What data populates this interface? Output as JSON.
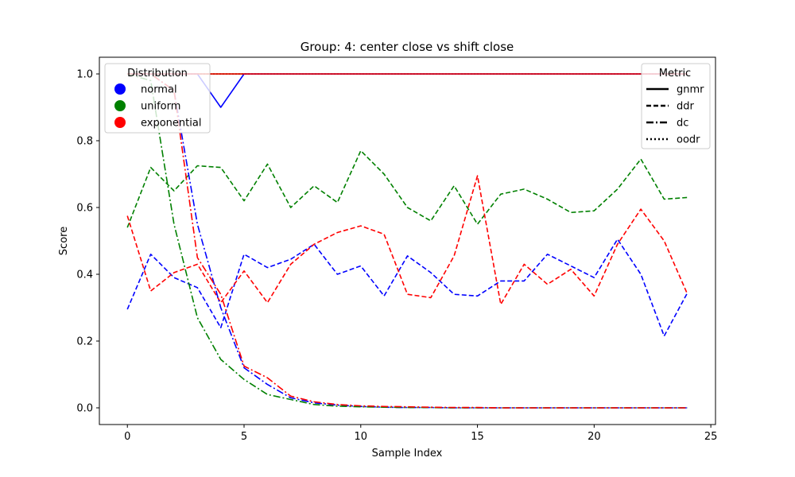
{
  "chart_data": {
    "type": "line",
    "title": "Group: 4: center close vs shift close",
    "xlabel": "Sample Index",
    "ylabel": "Score",
    "xlim": [
      -1.2,
      25.2
    ],
    "ylim": [
      -0.05,
      1.05
    ],
    "xticks": [
      0,
      5,
      10,
      15,
      20,
      25
    ],
    "yticks": [
      0.0,
      0.2,
      0.4,
      0.6,
      0.8,
      1.0
    ],
    "grid": false,
    "x": [
      0,
      1,
      2,
      3,
      4,
      5,
      6,
      7,
      8,
      9,
      10,
      11,
      12,
      13,
      14,
      15,
      16,
      17,
      18,
      19,
      20,
      21,
      22,
      23,
      24
    ],
    "colors": {
      "normal": "#0000ff",
      "uniform": "#008000",
      "exponential": "#ff0000"
    },
    "legend_distribution": {
      "title": "Distribution",
      "placement": "upper-left",
      "entries": [
        {
          "label": "normal",
          "color": "#0000ff"
        },
        {
          "label": "uniform",
          "color": "#008000"
        },
        {
          "label": "exponential",
          "color": "#ff0000"
        }
      ]
    },
    "legend_metric": {
      "title": "Metric",
      "placement": "upper-right",
      "entries": [
        {
          "label": "gnmr",
          "style": "solid"
        },
        {
          "label": "ddr",
          "style": "dashed"
        },
        {
          "label": "dc",
          "style": "dashdot"
        },
        {
          "label": "oodr",
          "style": "dotted"
        }
      ]
    },
    "series": [
      {
        "distribution": "normal",
        "metric": "oodr",
        "color": "#0000ff",
        "style": "dotted",
        "values": [
          1,
          1,
          1,
          1,
          1,
          1,
          1,
          1,
          1,
          1,
          1,
          1,
          1,
          1,
          1,
          1,
          1,
          1,
          1,
          1,
          1,
          1,
          1,
          1,
          1
        ]
      },
      {
        "distribution": "uniform",
        "metric": "oodr",
        "color": "#008000",
        "style": "dotted",
        "values": [
          1,
          1,
          1,
          1,
          1,
          1,
          1,
          1,
          1,
          1,
          1,
          1,
          1,
          1,
          1,
          1,
          1,
          1,
          1,
          1,
          1,
          1,
          1,
          1,
          1
        ]
      },
      {
        "distribution": "exponential",
        "metric": "oodr",
        "color": "#ff0000",
        "style": "dotted",
        "values": [
          1,
          1,
          1,
          1,
          1,
          1,
          1,
          1,
          1,
          1,
          1,
          1,
          1,
          1,
          1,
          1,
          1,
          1,
          1,
          1,
          1,
          1,
          1,
          1,
          1
        ]
      },
      {
        "distribution": "uniform",
        "metric": "gnmr",
        "color": "#008000",
        "style": "solid",
        "values": [
          1,
          1,
          1,
          1,
          1,
          1,
          1,
          1,
          1,
          1,
          1,
          1,
          1,
          1,
          1,
          1,
          1,
          1,
          1,
          1,
          1,
          1,
          1,
          1,
          1
        ]
      },
      {
        "distribution": "normal",
        "metric": "gnmr",
        "color": "#0000ff",
        "style": "solid",
        "values": [
          1,
          1,
          1,
          1,
          0.9,
          1,
          1,
          1,
          1,
          1,
          1,
          1,
          1,
          1,
          1,
          1,
          1,
          1,
          1,
          1,
          1,
          1,
          1,
          1,
          1
        ]
      },
      {
        "distribution": "exponential",
        "metric": "gnmr",
        "color": "#ff0000",
        "style": "solid",
        "values": [
          1,
          1,
          1,
          1,
          1,
          1,
          1,
          1,
          1,
          1,
          1,
          1,
          1,
          1,
          1,
          1,
          1,
          1,
          1,
          1,
          1,
          1,
          1,
          1,
          1
        ]
      },
      {
        "distribution": "normal",
        "metric": "ddr",
        "color": "#0000ff",
        "style": "dashed",
        "values": [
          0.295,
          0.46,
          0.39,
          0.36,
          0.24,
          0.46,
          0.42,
          0.445,
          0.49,
          0.4,
          0.425,
          0.335,
          0.455,
          0.405,
          0.34,
          0.335,
          0.38,
          0.38,
          0.46,
          0.425,
          0.39,
          0.505,
          0.4,
          0.215,
          0.345
        ]
      },
      {
        "distribution": "uniform",
        "metric": "ddr",
        "color": "#008000",
        "style": "dashed",
        "values": [
          0.54,
          0.72,
          0.65,
          0.725,
          0.72,
          0.62,
          0.73,
          0.6,
          0.665,
          0.615,
          0.77,
          0.7,
          0.6,
          0.56,
          0.665,
          0.55,
          0.64,
          0.655,
          0.625,
          0.585,
          0.59,
          0.655,
          0.745,
          0.625,
          0.63
        ]
      },
      {
        "distribution": "exponential",
        "metric": "ddr",
        "color": "#ff0000",
        "style": "dashed",
        "values": [
          0.575,
          0.35,
          0.405,
          0.43,
          0.315,
          0.41,
          0.315,
          0.43,
          0.49,
          0.525,
          0.545,
          0.52,
          0.34,
          0.33,
          0.455,
          0.695,
          0.31,
          0.43,
          0.37,
          0.415,
          0.335,
          0.49,
          0.595,
          0.5,
          0.34
        ]
      },
      {
        "distribution": "normal",
        "metric": "dc",
        "color": "#0000ff",
        "style": "dashdot",
        "values": [
          1.0,
          1.0,
          0.95,
          0.55,
          0.3,
          0.12,
          0.07,
          0.03,
          0.015,
          0.008,
          0.004,
          0.002,
          0.001,
          0.001,
          0.0,
          0.0,
          0.0,
          0.0,
          0.0,
          0.0,
          0.0,
          0.0,
          0.0,
          0.0,
          0.0
        ]
      },
      {
        "distribution": "uniform",
        "metric": "dc",
        "color": "#008000",
        "style": "dashdot",
        "values": [
          1.0,
          0.98,
          0.55,
          0.27,
          0.145,
          0.085,
          0.04,
          0.025,
          0.01,
          0.005,
          0.003,
          0.002,
          0.001,
          0.001,
          0.0,
          0.0,
          0.0,
          0.0,
          0.0,
          0.0,
          0.0,
          0.0,
          0.0,
          0.0,
          0.0
        ]
      },
      {
        "distribution": "exponential",
        "metric": "dc",
        "color": "#ff0000",
        "style": "dashdot",
        "values": [
          1.0,
          1.0,
          0.95,
          0.45,
          0.34,
          0.125,
          0.09,
          0.035,
          0.018,
          0.01,
          0.006,
          0.004,
          0.003,
          0.002,
          0.001,
          0.001,
          0.0,
          0.0,
          0.0,
          0.0,
          0.0,
          0.0,
          0.0,
          0.0,
          0.0
        ]
      }
    ]
  }
}
